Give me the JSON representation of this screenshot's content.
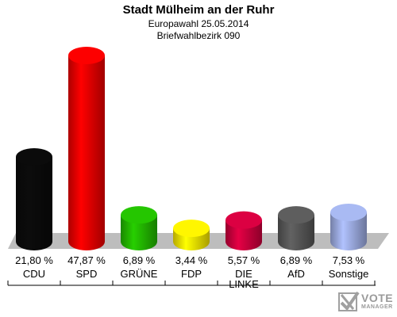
{
  "chart_data": {
    "type": "bar",
    "title": "Stadt Mülheim an der Ruhr",
    "subtitle": "Europawahl 25.05.2014",
    "subtitle2": "Briefwahlbezirk 090",
    "categories": [
      "CDU",
      "SPD",
      "GRÜNE",
      "FDP",
      "DIE LINKE",
      "AfD",
      "Sonstige"
    ],
    "values": [
      21.8,
      47.87,
      6.89,
      3.44,
      5.57,
      6.89,
      7.53
    ],
    "value_labels": [
      "21,80 %",
      "47,87 %",
      "6,89 %",
      "3,44 %",
      "5,57 %",
      "6,89 %",
      "7,53 %"
    ],
    "ylim": [
      0,
      50
    ],
    "grid": false,
    "colors": [
      "#0a0a0a",
      "#e60000",
      "#22b400",
      "#f2e000",
      "#c8003c",
      "#555555",
      "#9aa9dd"
    ]
  },
  "logo": {
    "line1": "VOTE",
    "line2": "MANAGER"
  }
}
